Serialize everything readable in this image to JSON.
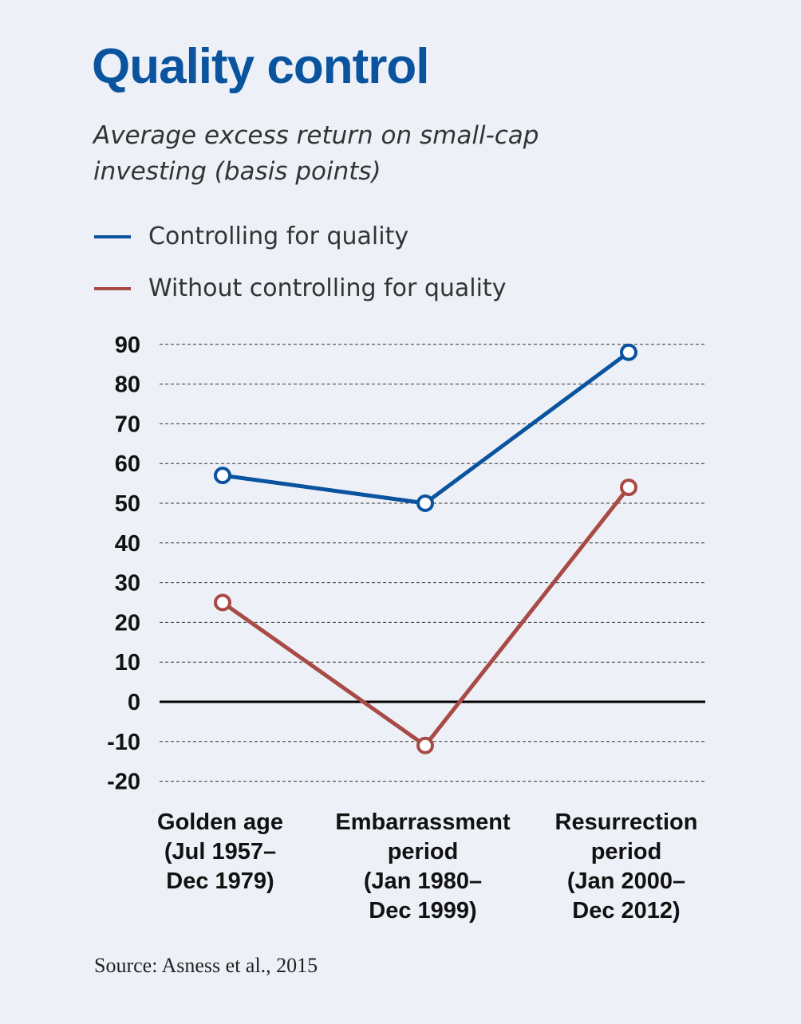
{
  "header": {
    "title": "Quality control",
    "subtitle": "Average excess return on small-cap investing (basis points)"
  },
  "source": "Source: Asness et al., 2015",
  "colors": {
    "title": "#0a539e",
    "controlling": "#0a539e",
    "without": "#a84b46",
    "background": "#edf1f7"
  },
  "chart_data": {
    "type": "line",
    "title": "Quality control",
    "subtitle": "Average excess return on small-cap investing (basis points)",
    "categories": [
      [
        "Golden age",
        "(Jul 1957–",
        "Dec 1979)"
      ],
      [
        "Embarrassment",
        "period",
        "(Jan 1980–",
        "Dec 1999)"
      ],
      [
        "Resurrection",
        "period",
        "(Jan 2000–",
        "Dec 2012)"
      ]
    ],
    "series": [
      {
        "name": "Controlling for quality",
        "color": "#0a539e",
        "values": [
          57,
          50,
          88
        ]
      },
      {
        "name": "Without controlling for quality",
        "color": "#a84b46",
        "values": [
          25,
          -11,
          54
        ]
      }
    ],
    "yticks": [
      90,
      80,
      70,
      60,
      50,
      40,
      30,
      20,
      10,
      0,
      -10,
      -20
    ],
    "ylim": [
      -20,
      90
    ],
    "grid": true,
    "legend": "top-left"
  }
}
